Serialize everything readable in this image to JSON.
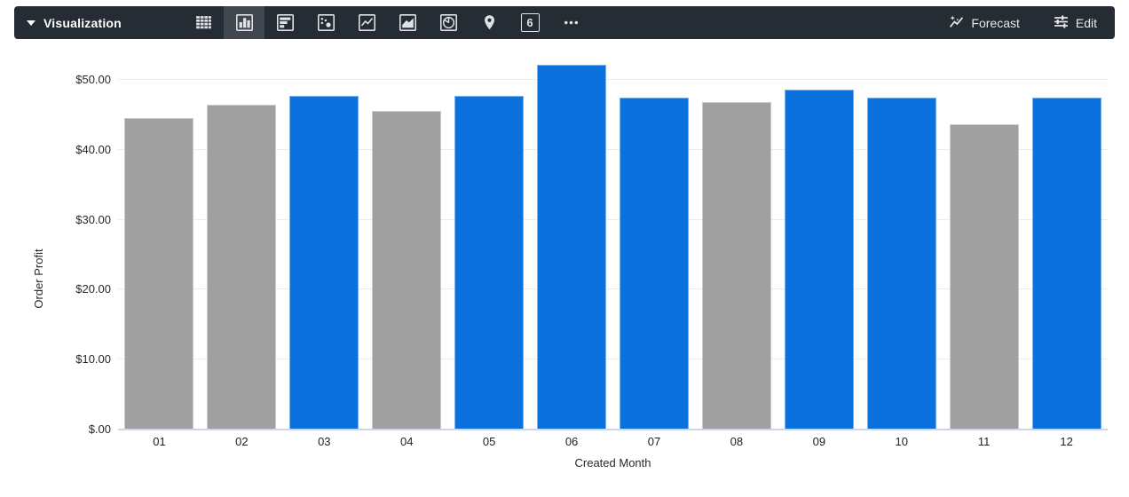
{
  "toolbar": {
    "dropdown_label": "Visualization",
    "viz_types": [
      {
        "name": "table",
        "selected": false
      },
      {
        "name": "column",
        "selected": true
      },
      {
        "name": "bar",
        "selected": false
      },
      {
        "name": "scatter",
        "selected": false
      },
      {
        "name": "line",
        "selected": false
      },
      {
        "name": "area",
        "selected": false
      },
      {
        "name": "pie",
        "selected": false
      },
      {
        "name": "map",
        "selected": false
      },
      {
        "name": "single-value",
        "selected": false,
        "glyph": "6"
      },
      {
        "name": "more",
        "selected": false
      }
    ],
    "forecast_label": "Forecast",
    "edit_label": "Edit",
    "colors": {
      "background": "#262c33",
      "selected_background": "#40474e",
      "icon": "#dfe3e6"
    }
  },
  "chart_data": {
    "type": "bar",
    "title": "",
    "xlabel": "Created Month",
    "ylabel": "Order Profit",
    "categories": [
      "01",
      "02",
      "03",
      "04",
      "05",
      "06",
      "07",
      "08",
      "09",
      "10",
      "11",
      "12"
    ],
    "values": [
      44.6,
      46.5,
      47.7,
      45.6,
      47.7,
      52.2,
      47.4,
      46.8,
      48.6,
      47.4,
      43.7,
      47.4
    ],
    "bar_colors": [
      "gray",
      "gray",
      "blue",
      "gray",
      "blue",
      "blue",
      "blue",
      "gray",
      "blue",
      "blue",
      "gray",
      "blue"
    ],
    "colors": {
      "blue": "#0b72dd",
      "gray": "#a0a0a0"
    },
    "y_ticks": [
      "$.00",
      "$10.00",
      "$20.00",
      "$30.00",
      "$40.00",
      "$50.00"
    ],
    "y_tick_values": [
      0,
      10,
      20,
      30,
      40,
      50
    ],
    "ylim": [
      0,
      53.8
    ],
    "grid": true,
    "legend": "none"
  }
}
